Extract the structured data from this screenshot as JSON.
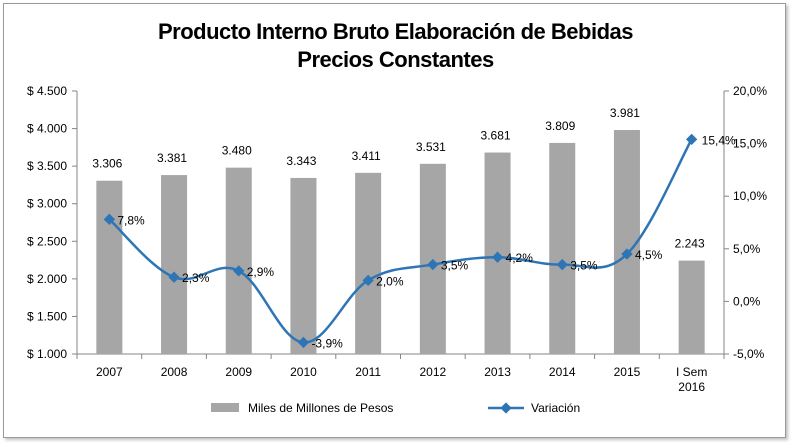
{
  "chart_data": {
    "type": "bar",
    "title": "Producto Interno Bruto Elaboración de Bebidas",
    "subtitle": "Precios Constantes",
    "categories": [
      [
        "2007"
      ],
      [
        "2008"
      ],
      [
        "2009"
      ],
      [
        "2010"
      ],
      [
        "2011"
      ],
      [
        "2012"
      ],
      [
        "2013"
      ],
      [
        "2014"
      ],
      [
        "2015"
      ],
      [
        "I Sem",
        "2016"
      ]
    ],
    "series": [
      {
        "name": "Miles de Millones de Pesos",
        "type": "bar",
        "axis": "left",
        "color": "#a6a6a6",
        "values": [
          3306,
          3381,
          3480,
          3343,
          3411,
          3531,
          3681,
          3809,
          3981,
          2243
        ],
        "labels": [
          "3.306",
          "3.381",
          "3.480",
          "3.343",
          "3.411",
          "3.531",
          "3.681",
          "3.809",
          "3.981",
          "2.243"
        ]
      },
      {
        "name": "Variación",
        "type": "line",
        "axis": "right",
        "color": "#2e75b6",
        "values": [
          7.8,
          2.3,
          2.9,
          -3.9,
          2.0,
          3.5,
          4.2,
          3.5,
          4.5,
          15.4
        ],
        "labels": [
          "7,8%",
          "2,3%",
          "2,9%",
          "-3,9%",
          "2,0%",
          "3,5%",
          "4,2%",
          "3,5%",
          "4,5%",
          "15,4%"
        ]
      }
    ],
    "y_left": {
      "min": 1000,
      "max": 4500,
      "ticks": [
        4500,
        4000,
        3500,
        3000,
        2500,
        2000,
        1500,
        1000
      ],
      "tick_labels": [
        "$ 4.500",
        "$ 4.000",
        "$ 3.500",
        "$ 3.000",
        "$ 2.500",
        "$ 2.000",
        "$ 1.500",
        "$ 1.000"
      ]
    },
    "y_right": {
      "min": -5,
      "max": 20,
      "ticks": [
        20,
        15,
        10,
        5,
        0,
        -5
      ],
      "tick_labels": [
        "20,0%",
        "15,0%",
        "10,0%",
        "5,0%",
        "0,0%",
        "-5,0%"
      ]
    },
    "legend_position": "bottom",
    "grid": false
  }
}
